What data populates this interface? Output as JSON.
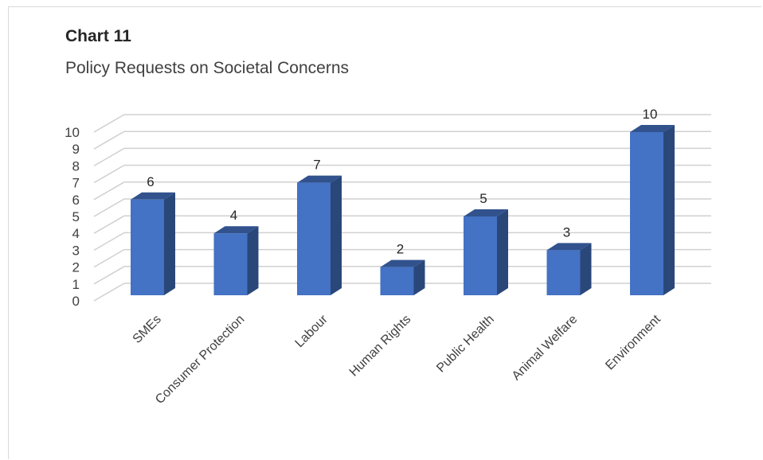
{
  "chart_heading": "Chart 11",
  "chart_data": {
    "type": "bar",
    "title": "Policy Requests on Societal Concerns",
    "categories": [
      "SMEs",
      "Consumer Protection",
      "Labour",
      "Human Rights",
      "Public Health",
      "Animal Welfare",
      "Environment"
    ],
    "values": [
      6,
      4,
      7,
      2,
      5,
      3,
      10
    ],
    "ylim": [
      0,
      10
    ],
    "yticks": [
      "0",
      "1",
      "2",
      "3",
      "4",
      "5",
      "6",
      "7",
      "8",
      "9",
      "10"
    ],
    "grid": true,
    "legend": "none",
    "bar_color": "#4472c4",
    "data_labels": true
  }
}
